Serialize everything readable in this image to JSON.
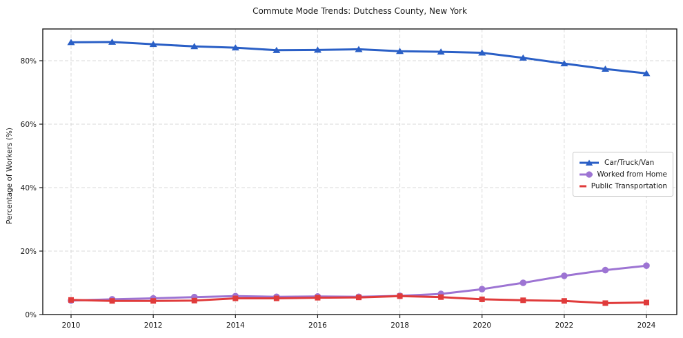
{
  "title": "Commute Mode Trends: Dutchess County, New York",
  "colors": {
    "car_line": "#2a5fc6",
    "home_line": "#9d74d3",
    "transit_line": "#e03b3b",
    "grid": "#d9d9d9",
    "spine": "#1a1a1a",
    "tick_text": "#1a1a1a"
  },
  "chart_data": {
    "type": "line",
    "title": "Commute Mode Trends: Dutchess County, New York",
    "xlabel": "",
    "ylabel": "Percentage of Workers (%)",
    "x": [
      2010,
      2011,
      2012,
      2013,
      2014,
      2015,
      2016,
      2017,
      2018,
      2019,
      2020,
      2021,
      2022,
      2023,
      2024
    ],
    "series": [
      {
        "name": "Car/Truck/Van",
        "color": "#2a5fc6",
        "marker": "triangle",
        "values": [
          85.8,
          85.9,
          85.2,
          84.5,
          84.1,
          83.3,
          83.4,
          83.6,
          83.0,
          82.8,
          82.5,
          80.9,
          79.1,
          77.4,
          76.0
        ]
      },
      {
        "name": "Worked from Home",
        "color": "#9d74d3",
        "marker": "circle",
        "values": [
          4.4,
          4.8,
          5.1,
          5.5,
          5.8,
          5.6,
          5.7,
          5.6,
          5.9,
          6.5,
          8.0,
          10.0,
          12.2,
          14.0,
          15.4
        ]
      },
      {
        "name": "Public Transportation",
        "color": "#e03b3b",
        "marker": "square",
        "values": [
          4.6,
          4.3,
          4.3,
          4.4,
          5.1,
          5.1,
          5.3,
          5.4,
          5.8,
          5.5,
          4.8,
          4.5,
          4.3,
          3.6,
          3.8
        ]
      }
    ],
    "xticks": [
      2010,
      2012,
      2014,
      2016,
      2018,
      2020,
      2022,
      2024
    ],
    "yticks": [
      0,
      20,
      40,
      60,
      80
    ],
    "yticklabels": [
      "0%",
      "20%",
      "40%",
      "60%",
      "80%"
    ],
    "ylim": [
      0,
      90
    ],
    "grid": true,
    "grid_style": "dashed",
    "legend_position": "center-right"
  }
}
